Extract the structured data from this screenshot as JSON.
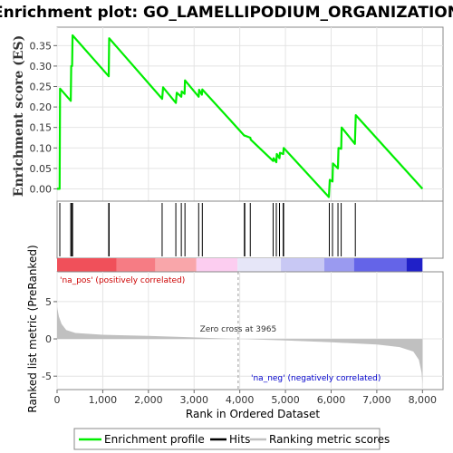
{
  "chart_data": {
    "type": "line",
    "title": "Enrichment plot: GO_LAMELLIPODIUM_ORGANIZATION",
    "top_panel": {
      "ylabel": "Enrichment score (ES)",
      "ylim": [
        -0.03,
        0.395
      ],
      "yticks": [
        0.0,
        0.05,
        0.1,
        0.15,
        0.2,
        0.25,
        0.3,
        0.35
      ],
      "ytick_labels": [
        "0.00",
        "0.05",
        "0.10",
        "0.15",
        "0.20",
        "0.25",
        "0.30",
        "0.35"
      ],
      "series": [
        {
          "name": "Enrichment profile",
          "color": "#00ee00",
          "points": [
            [
              0,
              0.0
            ],
            [
              55,
              0.0
            ],
            [
              65,
              0.245
            ],
            [
              300,
              0.215
            ],
            [
              310,
              0.3
            ],
            [
              330,
              0.3
            ],
            [
              340,
              0.375
            ],
            [
              1130,
              0.275
            ],
            [
              1140,
              0.368
            ],
            [
              2300,
              0.22
            ],
            [
              2320,
              0.248
            ],
            [
              2600,
              0.21
            ],
            [
              2620,
              0.235
            ],
            [
              2720,
              0.225
            ],
            [
              2730,
              0.238
            ],
            [
              2790,
              0.232
            ],
            [
              2800,
              0.265
            ],
            [
              3100,
              0.225
            ],
            [
              3110,
              0.242
            ],
            [
              3170,
              0.23
            ],
            [
              3180,
              0.243
            ],
            [
              4100,
              0.13
            ],
            [
              4110,
              0.13
            ],
            [
              4230,
              0.125
            ],
            [
              4240,
              0.12
            ],
            [
              4730,
              0.068
            ],
            [
              4740,
              0.075
            ],
            [
              4800,
              0.065
            ],
            [
              4810,
              0.085
            ],
            [
              4870,
              0.075
            ],
            [
              4880,
              0.088
            ],
            [
              4950,
              0.085
            ],
            [
              4960,
              0.1
            ],
            [
              5950,
              -0.02
            ],
            [
              5970,
              0.022
            ],
            [
              6030,
              0.018
            ],
            [
              6040,
              0.062
            ],
            [
              6150,
              0.05
            ],
            [
              6160,
              0.1
            ],
            [
              6220,
              0.098
            ],
            [
              6230,
              0.15
            ],
            [
              6520,
              0.11
            ],
            [
              6540,
              0.18
            ],
            [
              8000,
              0.0
            ]
          ]
        }
      ]
    },
    "hits": {
      "name": "Hits",
      "color": "#000000",
      "positions": [
        60,
        300,
        320,
        340,
        1130,
        1140,
        2300,
        2600,
        2720,
        2800,
        3100,
        3180,
        4100,
        4110,
        4230,
        4730,
        4800,
        4870,
        4950,
        4960,
        5960,
        6030,
        6150,
        6220,
        6530
      ]
    },
    "ranking_bar": {
      "segments": [
        {
          "from": 0,
          "to": 1300,
          "color": "#f0505a"
        },
        {
          "from": 1300,
          "to": 2150,
          "color": "#f67c84"
        },
        {
          "from": 2150,
          "to": 3050,
          "color": "#f9a6aa"
        },
        {
          "from": 3050,
          "to": 3950,
          "color": "#fccdf0"
        },
        {
          "from": 3950,
          "to": 4900,
          "color": "#e6e6f8"
        },
        {
          "from": 4900,
          "to": 5850,
          "color": "#c8c8f4"
        },
        {
          "from": 5850,
          "to": 6500,
          "color": "#9a9af0"
        },
        {
          "from": 6500,
          "to": 7650,
          "color": "#6464e8"
        },
        {
          "from": 7650,
          "to": 8000,
          "color": "#2020c8"
        }
      ]
    },
    "bottom_panel": {
      "ylabel": "Ranked list metric (PreRanked)",
      "xlabel": "Rank in Ordered Dataset",
      "ylim": [
        -6.8,
        9
      ],
      "yticks": [
        -5,
        0,
        5
      ],
      "ytick_labels": [
        "-5",
        "0",
        "5"
      ],
      "xlim": [
        0,
        8450
      ],
      "xticks": [
        0,
        1000,
        2000,
        3000,
        4000,
        5000,
        6000,
        7000,
        8000
      ],
      "xtick_labels": [
        "0",
        "1,000",
        "2,000",
        "3,000",
        "4,000",
        "5,000",
        "6,000",
        "7,000",
        "8,000"
      ],
      "metric_series": {
        "name": "Ranking metric scores",
        "color": "#c0c0c0",
        "points": [
          [
            0,
            4.3
          ],
          [
            40,
            3.0
          ],
          [
            100,
            2.0
          ],
          [
            200,
            1.2
          ],
          [
            400,
            0.8
          ],
          [
            1000,
            0.55
          ],
          [
            2000,
            0.4
          ],
          [
            3000,
            0.2
          ],
          [
            3965,
            0.0
          ],
          [
            5000,
            -0.2
          ],
          [
            6000,
            -0.45
          ],
          [
            7000,
            -0.75
          ],
          [
            7500,
            -1.1
          ],
          [
            7800,
            -1.7
          ],
          [
            7920,
            -2.8
          ],
          [
            7980,
            -4.5
          ],
          [
            8000,
            -6.0
          ]
        ]
      },
      "zero_cross_label": "Zero cross at 3965",
      "zero_cross_x": 3965,
      "pos_label": "'na_pos' (positively correlated)",
      "neg_label": "'na_neg' (negatively correlated)",
      "pos_color": "#cc0000",
      "neg_color": "#0000cc"
    },
    "legend": {
      "placement": "bottom",
      "items": [
        {
          "label": "Enrichment profile",
          "color": "#00ee00"
        },
        {
          "label": "Hits",
          "color": "#000000"
        },
        {
          "label": "Ranking metric scores",
          "color": "#c0c0c0"
        }
      ]
    }
  }
}
